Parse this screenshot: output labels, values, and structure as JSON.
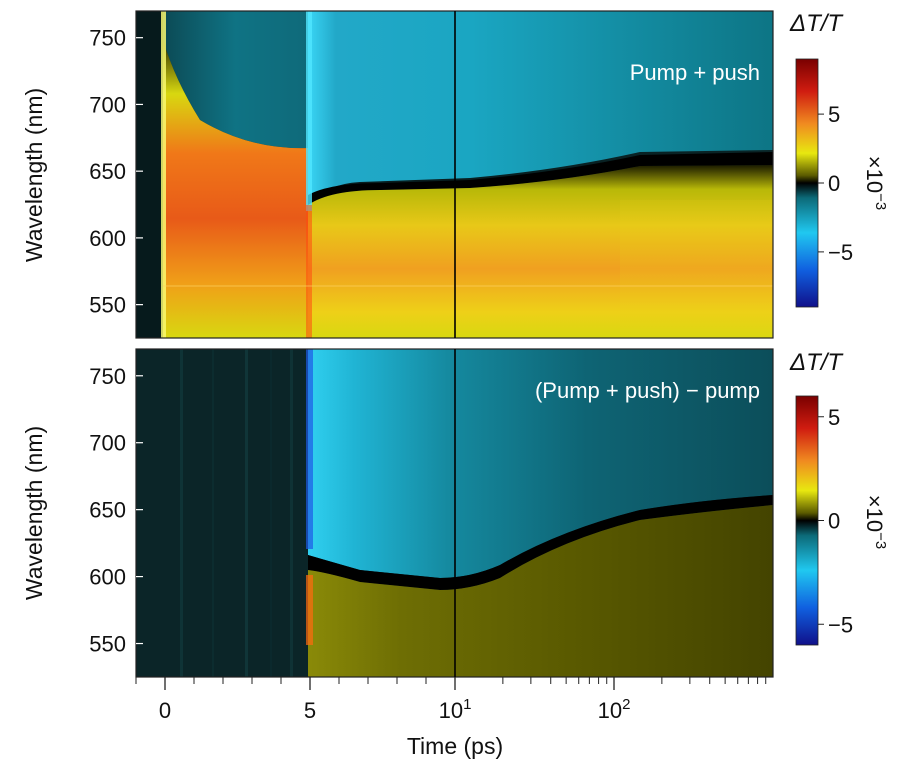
{
  "chart_data": [
    {
      "type": "heatmap",
      "panel_label": "Pump + push",
      "ylabel": "Wavelength (nm)",
      "xlabel": "Time (ps)",
      "x_axis": {
        "scale": "linear-then-log",
        "linear_range": [
          -1,
          10
        ],
        "log_range": [
          10,
          1000
        ],
        "ticks": [
          "0",
          "5",
          "10",
          "10"
        ],
        "tick_exponents": [
          "",
          "",
          "1",
          "2"
        ]
      },
      "y_axis": {
        "range": [
          525,
          770
        ],
        "ticks": [
          "750",
          "700",
          "650",
          "600",
          "550"
        ]
      },
      "grid": false,
      "colorbar": {
        "title": "ΔT/T",
        "multiplier": "×10",
        "multiplier_exponent": "−3",
        "range": [
          -9,
          9
        ],
        "ticks": [
          "5",
          "0",
          "−5"
        ],
        "colors": [
          "#1414a0",
          "#1060e0",
          "#20c8f0",
          "#108a9a",
          "#000000",
          "#6a6a00",
          "#e8e810",
          "#f08020",
          "#c81e10",
          "#7a0000"
        ]
      },
      "features": {
        "pump_time_ps": 0,
        "push_time_ps": 5,
        "photobleach_band_nm": [
          545,
          650
        ],
        "photobleach_peak_nm": 600,
        "photobleach_peak_value": 7,
        "induced_absorption_band_nm": [
          650,
          770
        ],
        "induced_absorption_value": -2.5
      }
    },
    {
      "type": "heatmap",
      "panel_label": "(Pump + push) − pump",
      "ylabel": "Wavelength (nm)",
      "xlabel": "Time (ps)",
      "y_axis": {
        "range": [
          525,
          770
        ],
        "ticks": [
          "750",
          "700",
          "650",
          "600",
          "550"
        ]
      },
      "grid": false,
      "colorbar": {
        "title": "ΔT/T",
        "multiplier": "×10",
        "multiplier_exponent": "−3",
        "range": [
          -6,
          6
        ],
        "ticks": [
          "5",
          "0",
          "−5"
        ]
      },
      "features": {
        "signal_onset_ps": 5,
        "negative_band_nm": [
          610,
          770
        ],
        "positive_band_nm": [
          530,
          605
        ],
        "negative_peak_value": -5,
        "positive_peak_value": 4
      }
    }
  ]
}
